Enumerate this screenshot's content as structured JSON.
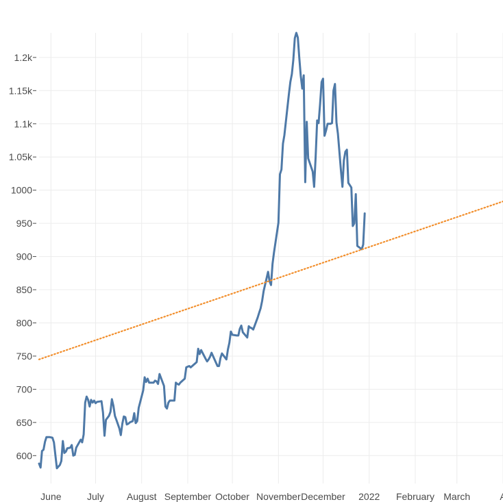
{
  "chart_data": {
    "type": "line",
    "title": "",
    "xlabel": "",
    "ylabel": "",
    "grid": true,
    "legend": "none",
    "x_ticks": [
      {
        "date": "2021-06-01",
        "label": "June"
      },
      {
        "date": "2021-07-01",
        "label": "July"
      },
      {
        "date": "2021-08-01",
        "label": "August"
      },
      {
        "date": "2021-09-01",
        "label": "September"
      },
      {
        "date": "2021-10-01",
        "label": "October"
      },
      {
        "date": "2021-11-01",
        "label": "November"
      },
      {
        "date": "2021-12-01",
        "label": "December"
      },
      {
        "date": "2022-01-01",
        "label": "2022"
      },
      {
        "date": "2022-02-01",
        "label": "February"
      },
      {
        "date": "2022-03-01",
        "label": "March"
      },
      {
        "date": "2022-04-01",
        "label": "A"
      }
    ],
    "y_ticks": [
      {
        "value": 600,
        "label": "600"
      },
      {
        "value": 650,
        "label": "650"
      },
      {
        "value": 700,
        "label": "700"
      },
      {
        "value": 750,
        "label": "750"
      },
      {
        "value": 800,
        "label": "800"
      },
      {
        "value": 850,
        "label": "850"
      },
      {
        "value": 900,
        "label": "900"
      },
      {
        "value": 950,
        "label": "950"
      },
      {
        "value": 1000,
        "label": "1000"
      },
      {
        "value": 1050,
        "label": "1.05k"
      },
      {
        "value": 1100,
        "label": "1.1k"
      },
      {
        "value": 1150,
        "label": "1.15k"
      },
      {
        "value": 1200,
        "label": "1.2k"
      }
    ],
    "xlim": [
      "2021-05-24",
      "2022-04-01"
    ],
    "ylim": [
      558,
      1237
    ],
    "series": [
      {
        "color": "#4e79a7",
        "style": "solid",
        "points": [
          [
            "2021-05-24",
            588
          ],
          [
            "2021-05-25",
            582
          ],
          [
            "2021-05-26",
            607
          ],
          [
            "2021-05-27",
            609
          ],
          [
            "2021-05-28",
            621
          ],
          [
            "2021-05-29",
            628
          ],
          [
            "2021-05-31",
            628
          ],
          [
            "2021-06-02",
            627
          ],
          [
            "2021-06-03",
            620
          ],
          [
            "2021-06-04",
            600
          ],
          [
            "2021-06-05",
            581
          ],
          [
            "2021-06-07",
            586
          ],
          [
            "2021-06-08",
            592
          ],
          [
            "2021-06-09",
            622
          ],
          [
            "2021-06-10",
            604
          ],
          [
            "2021-06-11",
            606
          ],
          [
            "2021-06-12",
            611
          ],
          [
            "2021-06-14",
            612
          ],
          [
            "2021-06-15",
            616
          ],
          [
            "2021-06-16",
            600
          ],
          [
            "2021-06-17",
            601
          ],
          [
            "2021-06-18",
            612
          ],
          [
            "2021-06-21",
            624
          ],
          [
            "2021-06-22",
            620
          ],
          [
            "2021-06-23",
            632
          ],
          [
            "2021-06-24",
            680
          ],
          [
            "2021-06-25",
            689
          ],
          [
            "2021-06-26",
            684
          ],
          [
            "2021-06-27",
            674
          ],
          [
            "2021-06-28",
            684
          ],
          [
            "2021-06-29",
            680
          ],
          [
            "2021-06-30",
            683
          ],
          [
            "2021-07-01",
            679
          ],
          [
            "2021-07-02",
            681
          ],
          [
            "2021-07-05",
            682
          ],
          [
            "2021-07-06",
            665
          ],
          [
            "2021-07-07",
            630
          ],
          [
            "2021-07-08",
            654
          ],
          [
            "2021-07-10",
            660
          ],
          [
            "2021-07-11",
            666
          ],
          [
            "2021-07-12",
            685
          ],
          [
            "2021-07-13",
            675
          ],
          [
            "2021-07-14",
            660
          ],
          [
            "2021-07-15",
            654
          ],
          [
            "2021-07-17",
            641
          ],
          [
            "2021-07-18",
            631
          ],
          [
            "2021-07-19",
            648
          ],
          [
            "2021-07-20",
            659
          ],
          [
            "2021-07-21",
            658
          ],
          [
            "2021-07-22",
            647
          ],
          [
            "2021-07-23",
            648
          ],
          [
            "2021-07-24",
            650
          ],
          [
            "2021-07-26",
            652
          ],
          [
            "2021-07-27",
            664
          ],
          [
            "2021-07-28",
            649
          ],
          [
            "2021-07-29",
            652
          ],
          [
            "2021-07-30",
            672
          ],
          [
            "2021-08-02",
            698
          ],
          [
            "2021-08-03",
            718
          ],
          [
            "2021-08-04",
            711
          ],
          [
            "2021-08-05",
            716
          ],
          [
            "2021-08-06",
            710
          ],
          [
            "2021-08-09",
            710
          ],
          [
            "2021-08-10",
            713
          ],
          [
            "2021-08-11",
            712
          ],
          [
            "2021-08-12",
            708
          ],
          [
            "2021-08-13",
            723
          ],
          [
            "2021-08-16",
            705
          ],
          [
            "2021-08-17",
            674
          ],
          [
            "2021-08-18",
            671
          ],
          [
            "2021-08-19",
            680
          ],
          [
            "2021-08-20",
            683
          ],
          [
            "2021-08-23",
            683
          ],
          [
            "2021-08-24",
            710
          ],
          [
            "2021-08-25",
            708
          ],
          [
            "2021-08-26",
            707
          ],
          [
            "2021-08-27",
            710
          ],
          [
            "2021-08-30",
            716
          ],
          [
            "2021-08-31",
            733
          ],
          [
            "2021-09-01",
            734
          ],
          [
            "2021-09-02",
            735
          ],
          [
            "2021-09-03",
            733
          ],
          [
            "2021-09-07",
            741
          ],
          [
            "2021-09-08",
            761
          ],
          [
            "2021-09-09",
            753
          ],
          [
            "2021-09-10",
            759
          ],
          [
            "2021-09-13",
            746
          ],
          [
            "2021-09-14",
            742
          ],
          [
            "2021-09-15",
            745
          ],
          [
            "2021-09-16",
            749
          ],
          [
            "2021-09-17",
            755
          ],
          [
            "2021-09-20",
            740
          ],
          [
            "2021-09-21",
            735
          ],
          [
            "2021-09-22",
            735
          ],
          [
            "2021-09-23",
            747
          ],
          [
            "2021-09-24",
            754
          ],
          [
            "2021-09-27",
            745
          ],
          [
            "2021-09-28",
            760
          ],
          [
            "2021-09-29",
            770
          ],
          [
            "2021-09-30",
            787
          ],
          [
            "2021-10-01",
            782
          ],
          [
            "2021-10-04",
            781
          ],
          [
            "2021-10-05",
            781
          ],
          [
            "2021-10-06",
            791
          ],
          [
            "2021-10-07",
            796
          ],
          [
            "2021-10-08",
            786
          ],
          [
            "2021-10-11",
            778
          ],
          [
            "2021-10-12",
            795
          ],
          [
            "2021-10-13",
            793
          ],
          [
            "2021-10-14",
            792
          ],
          [
            "2021-10-15",
            790
          ],
          [
            "2021-10-18",
            808
          ],
          [
            "2021-10-19",
            815
          ],
          [
            "2021-10-20",
            822
          ],
          [
            "2021-10-21",
            833
          ],
          [
            "2021-10-22",
            848
          ],
          [
            "2021-10-25",
            877
          ],
          [
            "2021-10-26",
            863
          ],
          [
            "2021-10-27",
            857
          ],
          [
            "2021-10-28",
            889
          ],
          [
            "2021-10-29",
            906
          ],
          [
            "2021-11-01",
            951
          ],
          [
            "2021-11-02",
            1024
          ],
          [
            "2021-11-03",
            1031
          ],
          [
            "2021-11-04",
            1070
          ],
          [
            "2021-11-05",
            1083
          ],
          [
            "2021-11-08",
            1144
          ],
          [
            "2021-11-09",
            1163
          ],
          [
            "2021-11-10",
            1175
          ],
          [
            "2021-11-11",
            1196
          ],
          [
            "2021-11-12",
            1229
          ],
          [
            "2021-11-13",
            1237
          ],
          [
            "2021-11-14",
            1230
          ],
          [
            "2021-11-15",
            1200
          ],
          [
            "2021-11-16",
            1172
          ],
          [
            "2021-11-17",
            1153
          ],
          [
            "2021-11-18",
            1173
          ],
          [
            "2021-11-19",
            1012
          ],
          [
            "2021-11-20",
            1103
          ],
          [
            "2021-11-21",
            1048
          ],
          [
            "2021-11-24",
            1028
          ],
          [
            "2021-11-25",
            1005
          ],
          [
            "2021-11-26",
            1050
          ],
          [
            "2021-11-27",
            1105
          ],
          [
            "2021-11-28",
            1101
          ],
          [
            "2021-11-29",
            1130
          ],
          [
            "2021-11-30",
            1163
          ],
          [
            "2021-12-01",
            1168
          ],
          [
            "2021-12-02",
            1082
          ],
          [
            "2021-12-03",
            1090
          ],
          [
            "2021-12-04",
            1100
          ],
          [
            "2021-12-06",
            1100
          ],
          [
            "2021-12-07",
            1101
          ],
          [
            "2021-12-08",
            1150
          ],
          [
            "2021-12-09",
            1160
          ],
          [
            "2021-12-10",
            1102
          ],
          [
            "2021-12-11",
            1085
          ],
          [
            "2021-12-13",
            1030
          ],
          [
            "2021-12-14",
            1005
          ],
          [
            "2021-12-15",
            1045
          ],
          [
            "2021-12-16",
            1058
          ],
          [
            "2021-12-17",
            1061
          ],
          [
            "2021-12-18",
            1011
          ],
          [
            "2021-12-20",
            1004
          ],
          [
            "2021-12-21",
            946
          ],
          [
            "2021-12-22",
            950
          ],
          [
            "2021-12-23",
            994
          ],
          [
            "2021-12-24",
            916
          ],
          [
            "2021-12-27",
            911
          ],
          [
            "2021-12-28",
            918
          ],
          [
            "2021-12-29",
            965
          ]
        ]
      },
      {
        "color": "#f28e2b",
        "style": "dotted",
        "points": [
          [
            "2021-05-24",
            745
          ],
          [
            "2022-04-01",
            983
          ]
        ]
      }
    ]
  }
}
